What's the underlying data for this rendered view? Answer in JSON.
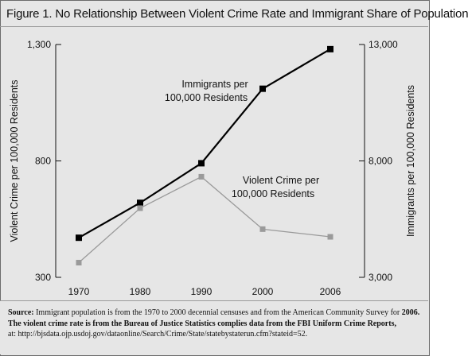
{
  "chart_data": {
    "type": "line",
    "title": "Figure 1. No Relationship Between Violent Crime Rate and Immigrant Share of Population",
    "categories": [
      "1970",
      "1980",
      "1990",
      "2000",
      "2006"
    ],
    "ylabel_left": "Violent Crime per 100,000 Residents",
    "ylabel_right": "Immigrants per 100,000 Residents",
    "ylim_left": [
      300,
      1300
    ],
    "ylim_right": [
      3000,
      13000
    ],
    "yticks_left": [
      "300",
      "800",
      "1,300"
    ],
    "yticks_right": [
      "3,000",
      "8,000",
      "13,000"
    ],
    "series": [
      {
        "name": "Immigrants per 100,000 Residents",
        "axis": "right",
        "color": "#000000",
        "values": [
          4700,
          6200,
          7900,
          11100,
          12800
        ]
      },
      {
        "name": "Violent Crime per 100,000 Residents",
        "axis": "left",
        "color": "#9a9a9a",
        "values": [
          363,
          597,
          732,
          507,
          474
        ]
      }
    ],
    "annotations": [
      {
        "lines": [
          "Immigrants per",
          "100,000 Residents"
        ]
      },
      {
        "lines": [
          "Violent Crime per",
          "100,000 Residents"
        ]
      }
    ],
    "grid": false
  },
  "source": {
    "label": "Source:",
    "text_1": " Immigrant population is from the 1970 to 2000 decennial censuses and from the American Community Survey for ",
    "text_2": "2006.  The violent crime rate is from the Bureau of Justice Statistics complies data from the FBI Uniform Crime Reports,",
    "text_3": "at:  http://bjsdata.ojp.usdoj.gov/dataonline/Search/Crime/State/statebystaterun.cfm?stateid=52."
  }
}
